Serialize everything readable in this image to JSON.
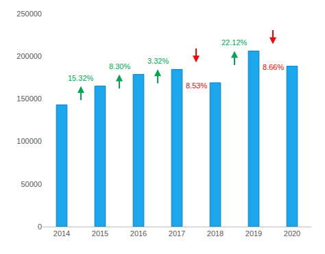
{
  "chart_data": {
    "type": "bar",
    "categories": [
      "2014",
      "2015",
      "2016",
      "2017",
      "2018",
      "2019",
      "2020"
    ],
    "values": [
      143000,
      165000,
      178700,
      184600,
      168900,
      206200,
      188400
    ],
    "color": "#1aa7ec",
    "ylim": [
      0,
      250000
    ],
    "yticks": [
      0,
      50000,
      100000,
      150000,
      200000,
      250000
    ],
    "grid": false,
    "annotations": [
      {
        "text": "15.32%",
        "color": "#00a651",
        "marker": "up"
      },
      {
        "text": "8.30%",
        "color": "#00a651",
        "marker": "up"
      },
      {
        "text": "3.32%",
        "color": "#00a651",
        "marker": "up"
      },
      {
        "text": "8.53%",
        "color": "#ff0000",
        "marker": "down"
      },
      {
        "text": "22.12%",
        "color": "#00a651",
        "marker": "up"
      },
      {
        "text": "8.66%",
        "color": "#ff0000",
        "marker": "down"
      }
    ]
  }
}
